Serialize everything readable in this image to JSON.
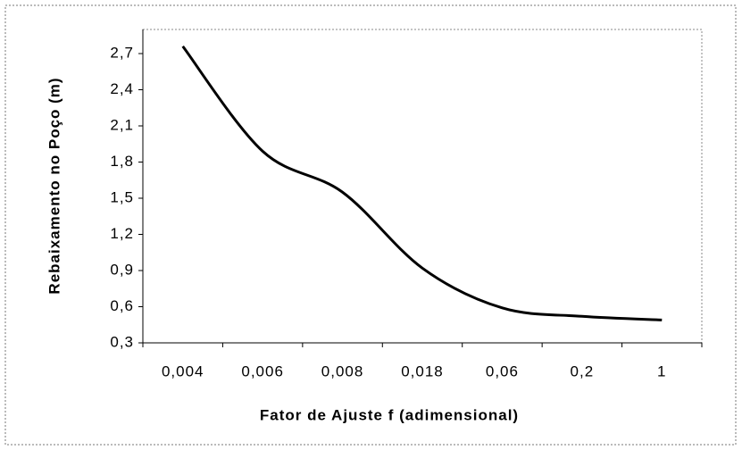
{
  "chart_data": {
    "type": "line",
    "x_label": "Fator de Ajuste f (adimensional)",
    "y_label": "Rebaixamento no Poço (m)",
    "categories": [
      "0,004",
      "0,006",
      "0,008",
      "0,018",
      "0,06",
      "0,2",
      "1"
    ],
    "values": [
      2.76,
      1.89,
      1.55,
      0.92,
      0.59,
      0.52,
      0.49
    ],
    "color": "#000000",
    "ylim": [
      0.3,
      2.9
    ],
    "yticks": [
      {
        "value": 0.3,
        "label": "0,3"
      },
      {
        "value": 0.6,
        "label": "0,6"
      },
      {
        "value": 0.9,
        "label": "0,9"
      },
      {
        "value": 1.2,
        "label": "1,2"
      },
      {
        "value": 1.5,
        "label": "1,5"
      },
      {
        "value": 1.8,
        "label": "1,8"
      },
      {
        "value": 2.1,
        "label": "2,1"
      },
      {
        "value": 2.4,
        "label": "2,4"
      },
      {
        "value": 2.7,
        "label": "2,7"
      }
    ],
    "grid": false
  }
}
